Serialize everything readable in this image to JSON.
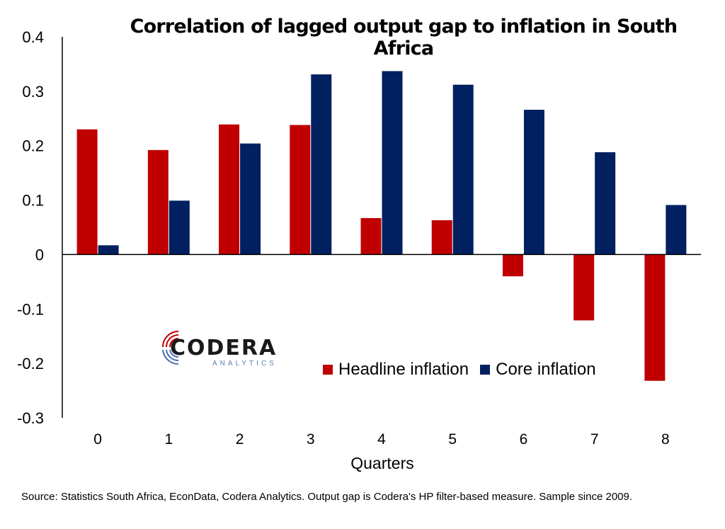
{
  "chart_data": {
    "type": "bar",
    "title": "Correlation of lagged output gap to inflation in South Africa",
    "xlabel": "Quarters",
    "ylabel": "",
    "categories": [
      "0",
      "1",
      "2",
      "3",
      "4",
      "5",
      "6",
      "7",
      "8"
    ],
    "series": [
      {
        "name": "Headline inflation",
        "color": "#c00000",
        "values": [
          0.23,
          0.192,
          0.239,
          0.238,
          0.067,
          0.063,
          -0.04,
          -0.121,
          -0.232
        ]
      },
      {
        "name": "Core inflation",
        "color": "#002060",
        "values": [
          0.017,
          0.099,
          0.204,
          0.331,
          0.337,
          0.312,
          0.266,
          0.188,
          0.091
        ]
      }
    ],
    "ylim": [
      -0.3,
      0.4
    ],
    "yticks": [
      "0.4",
      "0.3",
      "0.2",
      "0.1",
      "0",
      "-0.1",
      "-0.2",
      "-0.3"
    ],
    "grid": false,
    "legend": "bottom-right"
  },
  "logo": {
    "name": "CODERA",
    "sub": "ANALYTICS"
  },
  "source": "Source: Statistics South Africa, EconData, Codera Analytics. Output gap is Codera's HP filter-based measure. Sample since 2009."
}
